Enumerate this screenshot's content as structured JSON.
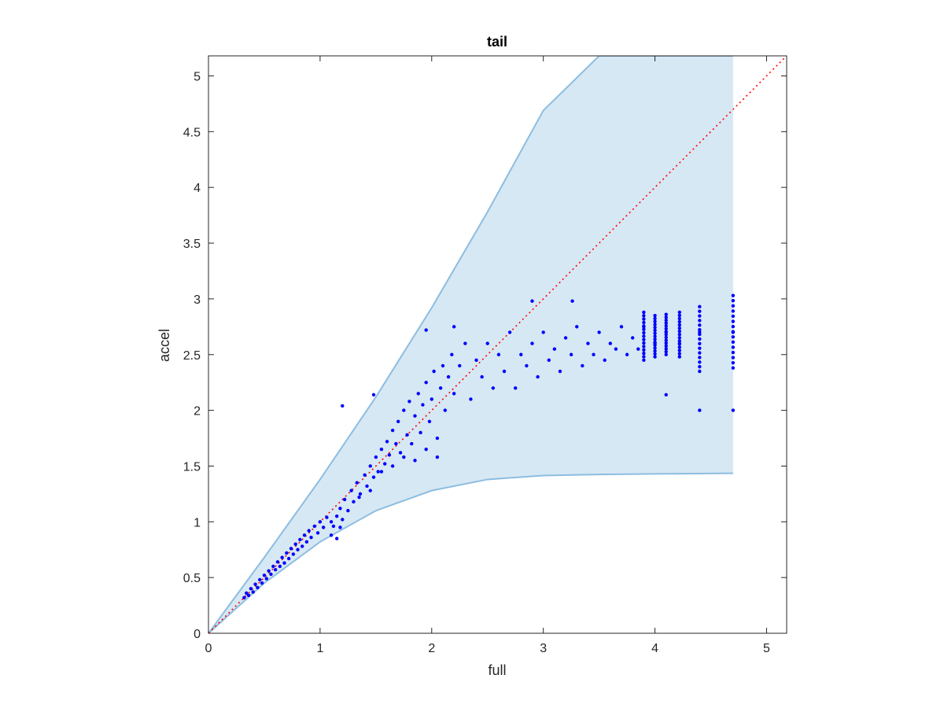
{
  "chart_data": {
    "type": "scatter",
    "title": "tail",
    "xlabel": "full",
    "ylabel": "accel",
    "xlim": [
      0,
      5.18
    ],
    "ylim": [
      0,
      5.18
    ],
    "xticks": [
      0,
      1,
      2,
      3,
      4,
      5
    ],
    "xtick_labels": [
      "0",
      "1",
      "2",
      "3",
      "4",
      "5"
    ],
    "yticks": [
      0,
      0.5,
      1,
      1.5,
      2,
      2.5,
      3,
      3.5,
      4,
      4.5,
      5
    ],
    "ytick_labels": [
      "0",
      "0.5",
      "1",
      "1.5",
      "2",
      "2.5",
      "3",
      "3.5",
      "4",
      "4.5",
      "5"
    ],
    "grid": false,
    "box": true,
    "band": {
      "color": "#d6e8f4",
      "edge_color": "#8dbde0",
      "upper": {
        "x": [
          0,
          0.5,
          1.0,
          1.5,
          2.0,
          2.5,
          3.0,
          3.5,
          3.8,
          4.7
        ],
        "y": [
          0,
          0.68,
          1.38,
          2.12,
          2.92,
          3.78,
          4.69,
          5.18,
          5.18,
          5.18
        ]
      },
      "lower": {
        "x": [
          0,
          0.5,
          1.0,
          1.5,
          2.0,
          2.5,
          3.0,
          3.5,
          4.0,
          4.7
        ],
        "y": [
          0,
          0.45,
          0.82,
          1.1,
          1.28,
          1.38,
          1.415,
          1.425,
          1.43,
          1.435
        ]
      }
    },
    "reference_line": {
      "x": [
        0,
        5.18
      ],
      "y": [
        0,
        5.18
      ],
      "color": "#ff0000",
      "style": "dotted"
    },
    "series": [
      {
        "color": "#0000ff",
        "points": [
          [
            0.32,
            0.32
          ],
          [
            0.34,
            0.36
          ],
          [
            0.36,
            0.34
          ],
          [
            0.38,
            0.4
          ],
          [
            0.4,
            0.37
          ],
          [
            0.42,
            0.44
          ],
          [
            0.44,
            0.41
          ],
          [
            0.46,
            0.48
          ],
          [
            0.48,
            0.45
          ],
          [
            0.5,
            0.52
          ],
          [
            0.52,
            0.49
          ],
          [
            0.54,
            0.56
          ],
          [
            0.56,
            0.53
          ],
          [
            0.58,
            0.6
          ],
          [
            0.6,
            0.57
          ],
          [
            0.62,
            0.64
          ],
          [
            0.64,
            0.6
          ],
          [
            0.66,
            0.68
          ],
          [
            0.68,
            0.63
          ],
          [
            0.7,
            0.72
          ],
          [
            0.72,
            0.67
          ],
          [
            0.74,
            0.76
          ],
          [
            0.76,
            0.71
          ],
          [
            0.78,
            0.8
          ],
          [
            0.8,
            0.75
          ],
          [
            0.82,
            0.84
          ],
          [
            0.84,
            0.78
          ],
          [
            0.86,
            0.88
          ],
          [
            0.88,
            0.82
          ],
          [
            0.9,
            0.92
          ],
          [
            0.92,
            0.86
          ],
          [
            0.95,
            0.96
          ],
          [
            0.98,
            0.9
          ],
          [
            1.0,
            1.0
          ],
          [
            1.03,
            0.95
          ],
          [
            1.06,
            1.04
          ],
          [
            1.1,
            1.0
          ],
          [
            1.12,
            0.96
          ],
          [
            1.15,
            1.05
          ],
          [
            1.18,
            1.12
          ],
          [
            1.2,
            1.02
          ],
          [
            1.22,
            1.2
          ],
          [
            1.25,
            1.1
          ],
          [
            1.28,
            1.28
          ],
          [
            1.3,
            1.18
          ],
          [
            1.33,
            1.35
          ],
          [
            1.36,
            1.25
          ],
          [
            1.4,
            1.42
          ],
          [
            1.42,
            1.32
          ],
          [
            1.45,
            1.5
          ],
          [
            1.48,
            1.4
          ],
          [
            1.5,
            1.58
          ],
          [
            1.52,
            1.45
          ],
          [
            1.55,
            1.65
          ],
          [
            1.58,
            1.52
          ],
          [
            1.6,
            1.72
          ],
          [
            1.62,
            1.6
          ],
          [
            1.65,
            1.82
          ],
          [
            1.68,
            1.7
          ],
          [
            1.7,
            1.9
          ],
          [
            1.72,
            1.62
          ],
          [
            1.75,
            2.0
          ],
          [
            1.78,
            1.78
          ],
          [
            1.8,
            2.08
          ],
          [
            1.82,
            1.7
          ],
          [
            1.85,
            1.95
          ],
          [
            1.88,
            2.15
          ],
          [
            1.9,
            1.8
          ],
          [
            1.92,
            2.05
          ],
          [
            1.95,
            2.25
          ],
          [
            1.98,
            1.9
          ],
          [
            2.0,
            2.1
          ],
          [
            2.02,
            2.35
          ],
          [
            2.05,
            1.75
          ],
          [
            2.08,
            2.2
          ],
          [
            2.1,
            2.4
          ],
          [
            2.12,
            2.0
          ],
          [
            2.15,
            2.3
          ],
          [
            2.18,
            2.5
          ],
          [
            2.2,
            2.15
          ],
          [
            2.25,
            2.4
          ],
          [
            2.3,
            2.6
          ],
          [
            2.35,
            2.1
          ],
          [
            2.4,
            2.45
          ],
          [
            2.45,
            2.3
          ],
          [
            2.5,
            2.6
          ],
          [
            2.55,
            2.2
          ],
          [
            2.6,
            2.5
          ],
          [
            2.65,
            2.35
          ],
          [
            2.7,
            2.7
          ],
          [
            2.75,
            2.2
          ],
          [
            2.8,
            2.5
          ],
          [
            2.85,
            2.4
          ],
          [
            2.9,
            2.6
          ],
          [
            2.95,
            2.3
          ],
          [
            3.0,
            2.7
          ],
          [
            3.05,
            2.45
          ],
          [
            3.1,
            2.55
          ],
          [
            3.15,
            2.35
          ],
          [
            3.2,
            2.65
          ],
          [
            3.25,
            2.5
          ],
          [
            3.3,
            2.75
          ],
          [
            3.35,
            2.4
          ],
          [
            3.4,
            2.6
          ],
          [
            3.45,
            2.5
          ],
          [
            3.5,
            2.7
          ],
          [
            3.55,
            2.45
          ],
          [
            3.6,
            2.6
          ],
          [
            3.65,
            2.55
          ],
          [
            3.7,
            2.75
          ],
          [
            3.75,
            2.5
          ],
          [
            3.8,
            2.65
          ],
          [
            3.85,
            2.55
          ],
          [
            3.9,
            2.75
          ],
          [
            4.0,
            2.6
          ],
          [
            4.1,
            2.7
          ],
          [
            4.22,
            2.6
          ],
          [
            4.4,
            2.7
          ],
          [
            4.7,
            2.7
          ],
          [
            1.2,
            2.04
          ],
          [
            1.48,
            2.14
          ],
          [
            1.95,
            2.72
          ],
          [
            2.2,
            2.75
          ],
          [
            2.9,
            2.98
          ],
          [
            3.26,
            2.98
          ],
          [
            4.4,
            2.0
          ],
          [
            4.7,
            2.0
          ],
          [
            4.1,
            2.14
          ],
          [
            1.1,
            0.88
          ],
          [
            1.15,
            0.85
          ],
          [
            1.18,
            0.95
          ],
          [
            1.35,
            1.22
          ],
          [
            1.45,
            1.28
          ],
          [
            1.55,
            1.45
          ],
          [
            1.65,
            1.5
          ],
          [
            1.75,
            1.58
          ],
          [
            1.85,
            1.55
          ],
          [
            1.95,
            1.65
          ],
          [
            2.05,
            1.58
          ]
        ],
        "vertical_groups": [
          {
            "x": 3.9,
            "y_min": 2.45,
            "y_max": 2.88
          },
          {
            "x": 4.0,
            "y_min": 2.48,
            "y_max": 2.85
          },
          {
            "x": 4.1,
            "y_min": 2.5,
            "y_max": 2.86
          },
          {
            "x": 4.22,
            "y_min": 2.48,
            "y_max": 2.88
          },
          {
            "x": 4.4,
            "y_min": 2.35,
            "y_max": 2.93
          },
          {
            "x": 4.7,
            "y_min": 2.38,
            "y_max": 3.03
          }
        ]
      }
    ]
  }
}
